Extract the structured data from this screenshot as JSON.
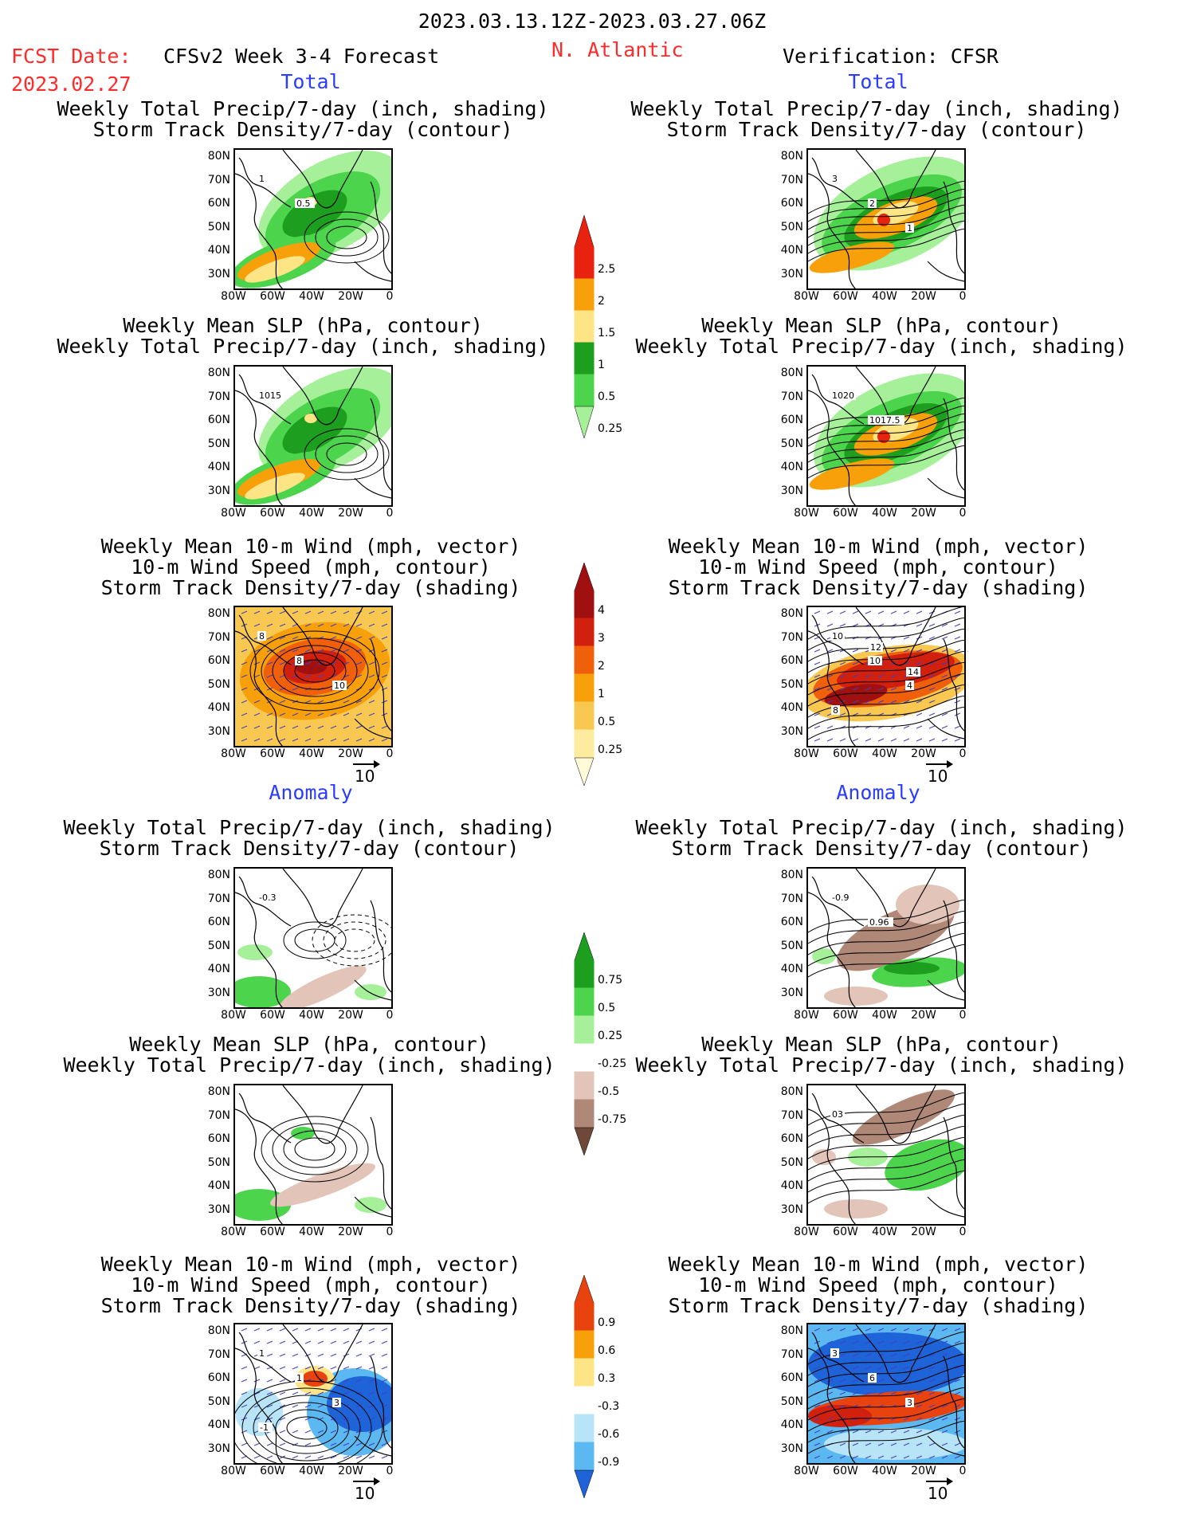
{
  "header": {
    "period": "2023.03.13.12Z-2023.03.27.06Z",
    "fcst_label": "FCST Date:",
    "fcst_date": "2023.02.27",
    "model": "CFSv2 Week 3-4 Forecast",
    "region": "N. Atlantic",
    "verification": "Verification: CFSR"
  },
  "sections": {
    "total": "Total",
    "anomaly": "Anomaly"
  },
  "titles": {
    "precip_storm": [
      "Weekly Total Precip/7-day (inch, shading)",
      "Storm Track Density/7-day (contour)"
    ],
    "slp_precip": [
      "Weekly Mean SLP (hPa, contour)",
      "Weekly Total Precip/7-day (inch, shading)"
    ],
    "wind_storm": [
      "Weekly Mean 10-m Wind (mph, vector)",
      "10-m Wind Speed (mph, contour)",
      "Storm Track Density/7-day (shading)"
    ]
  },
  "axes": {
    "lat_ticks": [
      "80N",
      "70N",
      "60N",
      "50N",
      "40N",
      "30N"
    ],
    "lon_ticks": [
      "80W",
      "60W",
      "40W",
      "20W",
      "0"
    ]
  },
  "vector_ref": "10",
  "contour_labels": {
    "p1": [
      "1",
      "0.5"
    ],
    "p2": [
      "3",
      "2",
      "1"
    ],
    "p3": [
      "1015"
    ],
    "p4": [
      "1020",
      "1017.5"
    ],
    "p5": [
      "8",
      "8",
      "10"
    ],
    "p6": [
      "10",
      "10",
      "4",
      "8",
      "12",
      "14"
    ],
    "p7": [
      "-0.3"
    ],
    "p8": [
      "-0.9",
      "0.96"
    ],
    "p10": [
      "03"
    ],
    "p11": [
      "1",
      "1",
      "3",
      "-1"
    ],
    "p12": [
      "3",
      "6",
      "3"
    ]
  },
  "colorbars": {
    "precip_total": {
      "levels": [
        "2.5",
        "2",
        "1.5",
        "1",
        "0.5",
        "0.25"
      ],
      "colors": [
        "#e8220f",
        "#f7a00a",
        "#fde585",
        "#1e9e1e",
        "#4cd44c",
        "#a6f09a"
      ]
    },
    "storm_total": {
      "levels": [
        "4",
        "3",
        "2",
        "1",
        "0.5",
        "0.25"
      ],
      "colors": [
        "#a01010",
        "#d2200e",
        "#f0600a",
        "#f7a00a",
        "#f8c850",
        "#fdeca0",
        "#fffad8"
      ]
    },
    "precip_anom": {
      "levels": [
        "0.75",
        "0.5",
        "0.25",
        "-0.25",
        "-0.5",
        "-0.75"
      ],
      "colors": [
        "#1e9e1e",
        "#4cd44c",
        "#a6f09a",
        "#ffffff",
        "#e2c4b8",
        "#b08878",
        "#6e4838"
      ]
    },
    "storm_anom": {
      "levels": [
        "0.9",
        "0.6",
        "0.3",
        "-0.3",
        "-0.6",
        "-0.9"
      ],
      "colors": [
        "#e8420f",
        "#f7a00a",
        "#fde585",
        "#ffffff",
        "#b8e4f8",
        "#5cb8f0",
        "#1e64d8"
      ]
    }
  }
}
